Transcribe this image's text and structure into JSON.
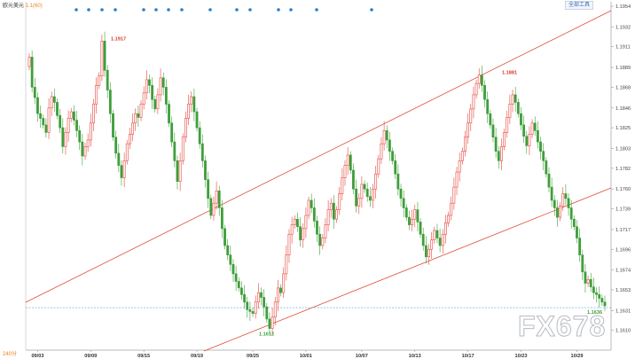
{
  "header": {
    "symbol": "欧元美元",
    "price": "1.1(60)"
  },
  "toolbar": {
    "label": "全部工具"
  },
  "watermark": "FX678",
  "corner_label": "240分",
  "chart_data": {
    "type": "candlestick",
    "title": "",
    "xlabel": "",
    "ylabel": "",
    "ylim": [
      1.1589,
      1.1954
    ],
    "yticks": [
      1.1954,
      1.1932,
      1.1911,
      1.1889,
      1.1868,
      1.1846,
      1.1825,
      1.1803,
      1.1782,
      1.176,
      1.1739,
      1.1717,
      1.1696,
      1.1674,
      1.1653,
      1.1631,
      1.161
    ],
    "ytick_labels": [
      "1.1954",
      "1.1932",
      "1.1911",
      "1.1889",
      "1.1868",
      "1.1846",
      "1.1825",
      "1.1803",
      "1.1782",
      "1.1760",
      "1.1739",
      "1.1717",
      "1.1696",
      "1.1674",
      "1.1653",
      "1.1631",
      "1.1610"
    ],
    "xticks": [
      {
        "label": "09/03",
        "index": 3
      },
      {
        "label": "09/09",
        "index": 22
      },
      {
        "label": "09/15",
        "index": 41
      },
      {
        "label": "09/19",
        "index": 60
      },
      {
        "label": "09/25",
        "index": 80
      },
      {
        "label": "10/01",
        "index": 99
      },
      {
        "label": "10/07",
        "index": 119
      },
      {
        "label": "10/13",
        "index": 138
      },
      {
        "label": "10/17",
        "index": 157
      },
      {
        "label": "10/23",
        "index": 176
      },
      {
        "label": "10/29",
        "index": 196
      }
    ],
    "closes": [
      1.19,
      1.1868,
      1.1857,
      1.184,
      1.1835,
      1.1828,
      1.182,
      1.1846,
      1.1858,
      1.1852,
      1.1838,
      1.1825,
      1.1805,
      1.182,
      1.1835,
      1.1842,
      1.1833,
      1.1822,
      1.181,
      1.1795,
      1.1805,
      1.1812,
      1.183,
      1.185,
      1.187,
      1.188,
      1.1917,
      1.1886,
      1.1865,
      1.184,
      1.1815,
      1.1798,
      1.1785,
      1.1772,
      1.179,
      1.1808,
      1.1818,
      1.183,
      1.184,
      1.1836,
      1.185,
      1.1862,
      1.1876,
      1.187,
      1.1855,
      1.1845,
      1.186,
      1.1878,
      1.1868,
      1.185,
      1.183,
      1.181,
      1.179,
      1.1768,
      1.179,
      1.1815,
      1.1835,
      1.185,
      1.1858,
      1.1842,
      1.1825,
      1.1808,
      1.179,
      1.177,
      1.175,
      1.1732,
      1.1745,
      1.1758,
      1.174,
      1.1718,
      1.17,
      1.169,
      1.168,
      1.167,
      1.1662,
      1.1655,
      1.1648,
      1.164,
      1.1632,
      1.163,
      1.1628,
      1.164,
      1.165,
      1.1645,
      1.1635,
      1.1622,
      1.1612,
      1.1624,
      1.164,
      1.1655,
      1.165,
      1.167,
      1.169,
      1.1712,
      1.1722,
      1.1728,
      1.172,
      1.1706,
      1.1718,
      1.1732,
      1.1748,
      1.174,
      1.1726,
      1.1712,
      1.17,
      1.1708,
      1.1722,
      1.1738,
      1.1745,
      1.1728,
      1.1738,
      1.1755,
      1.1772,
      1.1785,
      1.1796,
      1.178,
      1.176,
      1.1742,
      1.175,
      1.1765,
      1.176,
      1.1752,
      1.1748,
      1.176,
      1.1776,
      1.1792,
      1.1808,
      1.1822,
      1.1812,
      1.18,
      1.179,
      1.1776,
      1.176,
      1.175,
      1.174,
      1.173,
      1.1722,
      1.1728,
      1.1738,
      1.1725,
      1.1712,
      1.17,
      1.1688,
      1.1696,
      1.1706,
      1.1716,
      1.1708,
      1.17,
      1.1712,
      1.1724,
      1.1732,
      1.1745,
      1.1762,
      1.1778,
      1.179,
      1.18,
      1.1815,
      1.183,
      1.1845,
      1.186,
      1.1872,
      1.1881,
      1.187,
      1.1855,
      1.184,
      1.1828,
      1.1815,
      1.18,
      1.179,
      1.1805,
      1.182,
      1.1836,
      1.185,
      1.186,
      1.1852,
      1.184,
      1.1828,
      1.1816,
      1.1806,
      1.1818,
      1.183,
      1.1822,
      1.181,
      1.18,
      1.179,
      1.1776,
      1.1762,
      1.1748,
      1.174,
      1.173,
      1.1742,
      1.1755,
      1.175,
      1.174,
      1.1728,
      1.172,
      1.1708,
      1.169,
      1.1672,
      1.166,
      1.1664,
      1.1656,
      1.165,
      1.1648,
      1.1644,
      1.164,
      1.1636
    ],
    "annotations": [
      {
        "label": "1.1917",
        "value": 1.1917
      },
      {
        "label": "1.1881",
        "value": 1.1881
      },
      {
        "label": "1.1612",
        "value": 1.1612
      },
      {
        "label": "1.1636",
        "value": 1.1636
      }
    ],
    "current_price": 1.1636,
    "marker_count": 17,
    "colors": {
      "up": "#e6453c",
      "down": "#3f9e3a",
      "trendline": "#e04a3a",
      "price_line": "#55a7d4",
      "markers": "#2f7fc1",
      "high_label": "#d43c2e",
      "low_label": "#3f9e3a"
    },
    "grid": false,
    "legend": "none"
  }
}
